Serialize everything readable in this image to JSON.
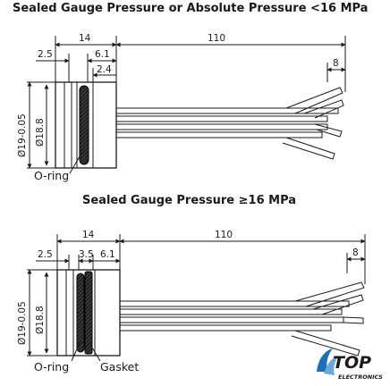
{
  "top_drawing": {
    "title": "Sealed Gauge Pressure or Absolute Pressure <16 MPa",
    "dims": {
      "housing_length": "14",
      "cable_length": "110",
      "step_a": "2.5",
      "step_b": "6.1",
      "step_c": "2.4",
      "wire_spread": "8",
      "dia_outer": "Ø19-0.05",
      "dia_inner": "Ø18.8"
    },
    "labels": {
      "o_ring": "O-ring"
    }
  },
  "bottom_drawing": {
    "title": "Sealed Gauge Pressure ≥16 MPa",
    "dims": {
      "housing_length": "14",
      "cable_length": "110",
      "step_a": "2.5",
      "step_b": "3.5",
      "step_c": "6.1",
      "wire_spread": "8",
      "dia_outer": "Ø19-0.05",
      "dia_inner": "Ø18.8"
    },
    "labels": {
      "o_ring": "O-ring",
      "gasket": "Gasket"
    }
  },
  "logo": {
    "brand": "TOP",
    "tagline": "ELECTRONICS",
    "brand_color": "#1f6fb5"
  }
}
